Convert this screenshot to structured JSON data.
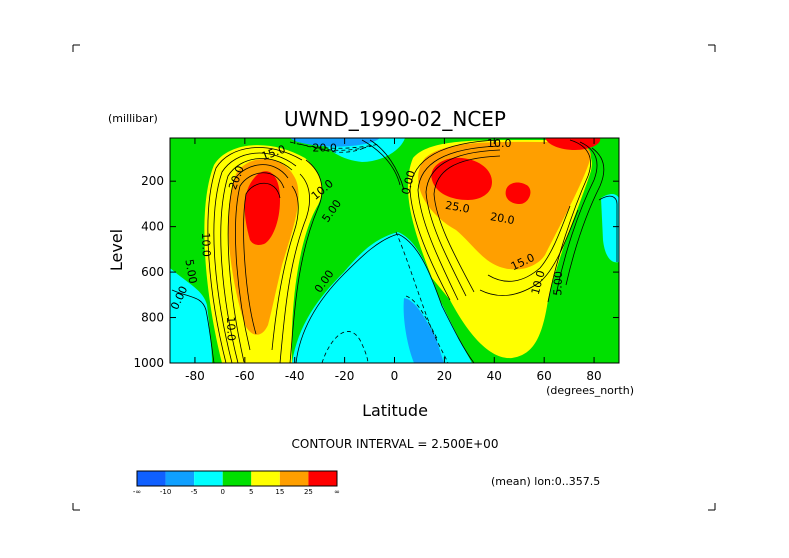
{
  "chart_data": {
    "type": "contour",
    "title": "UWND_1990-02_NCEP",
    "xlabel": "Latitude",
    "x_unit_label": "(degrees_north)",
    "ylabel": "Level",
    "y_unit_label": "(millibar)",
    "x_range": [
      -90,
      90
    ],
    "y_range": [
      1000,
      10
    ],
    "x_ticks": [
      "-80",
      "-60",
      "-40",
      "-20",
      "0",
      "20",
      "40",
      "60",
      "80"
    ],
    "x_tick_values": [
      -80,
      -60,
      -40,
      -20,
      0,
      20,
      40,
      60,
      80
    ],
    "y_ticks": [
      "200",
      "400",
      "600",
      "800",
      "1000"
    ],
    "y_tick_values": [
      200,
      400,
      600,
      800,
      1000
    ],
    "contour_interval_text": "CONTOUR INTERVAL = 2.500E+00",
    "footer_note": "(mean) lon:0..357.5",
    "colorbar": {
      "colors": [
        "#1060ff",
        "#10a0ff",
        "#00ffff",
        "#00e000",
        "#ffff00",
        "#ff9f00",
        "#ff0000"
      ],
      "tick_labels": [
        "-∞",
        "-10",
        "-5",
        "0",
        "5",
        "15",
        "25",
        "∞"
      ]
    },
    "contour_labels": [
      {
        "text": "20.0",
        "lat": -62,
        "p": 190,
        "rotate": -70
      },
      {
        "text": "15.0",
        "lat": -48,
        "p": 90,
        "rotate": -20
      },
      {
        "text": "10.0",
        "lat": -28,
        "p": 250,
        "rotate": -40
      },
      {
        "text": "5.00",
        "lat": -24,
        "p": 340,
        "rotate": -55
      },
      {
        "text": "10.0",
        "lat": -77,
        "p": 480,
        "rotate": 88
      },
      {
        "text": "5.00",
        "lat": -83,
        "p": 600,
        "rotate": 80
      },
      {
        "text": "0.00",
        "lat": -85,
        "p": 720,
        "rotate": -65
      },
      {
        "text": "10.0",
        "lat": -67,
        "p": 850,
        "rotate": 88
      },
      {
        "text": "0.00",
        "lat": -27,
        "p": 650,
        "rotate": -55
      },
      {
        "text": "0.00",
        "lat": 7,
        "p": 210,
        "rotate": -75
      },
      {
        "text": "25.0",
        "lat": 25,
        "p": 330,
        "rotate": 10
      },
      {
        "text": "20.0",
        "lat": 43,
        "p": 380,
        "rotate": 10
      },
      {
        "text": "15.0",
        "lat": 52,
        "p": 570,
        "rotate": -25
      },
      {
        "text": "10.0",
        "lat": 59,
        "p": 650,
        "rotate": -75
      },
      {
        "text": "5.00",
        "lat": 67,
        "p": 650,
        "rotate": -88
      },
      {
        "text": "10.0",
        "lat": 42,
        "p": 50,
        "rotate": 0
      },
      {
        "text": "20.0",
        "lat": -28,
        "p": 70,
        "rotate": 0
      }
    ]
  }
}
